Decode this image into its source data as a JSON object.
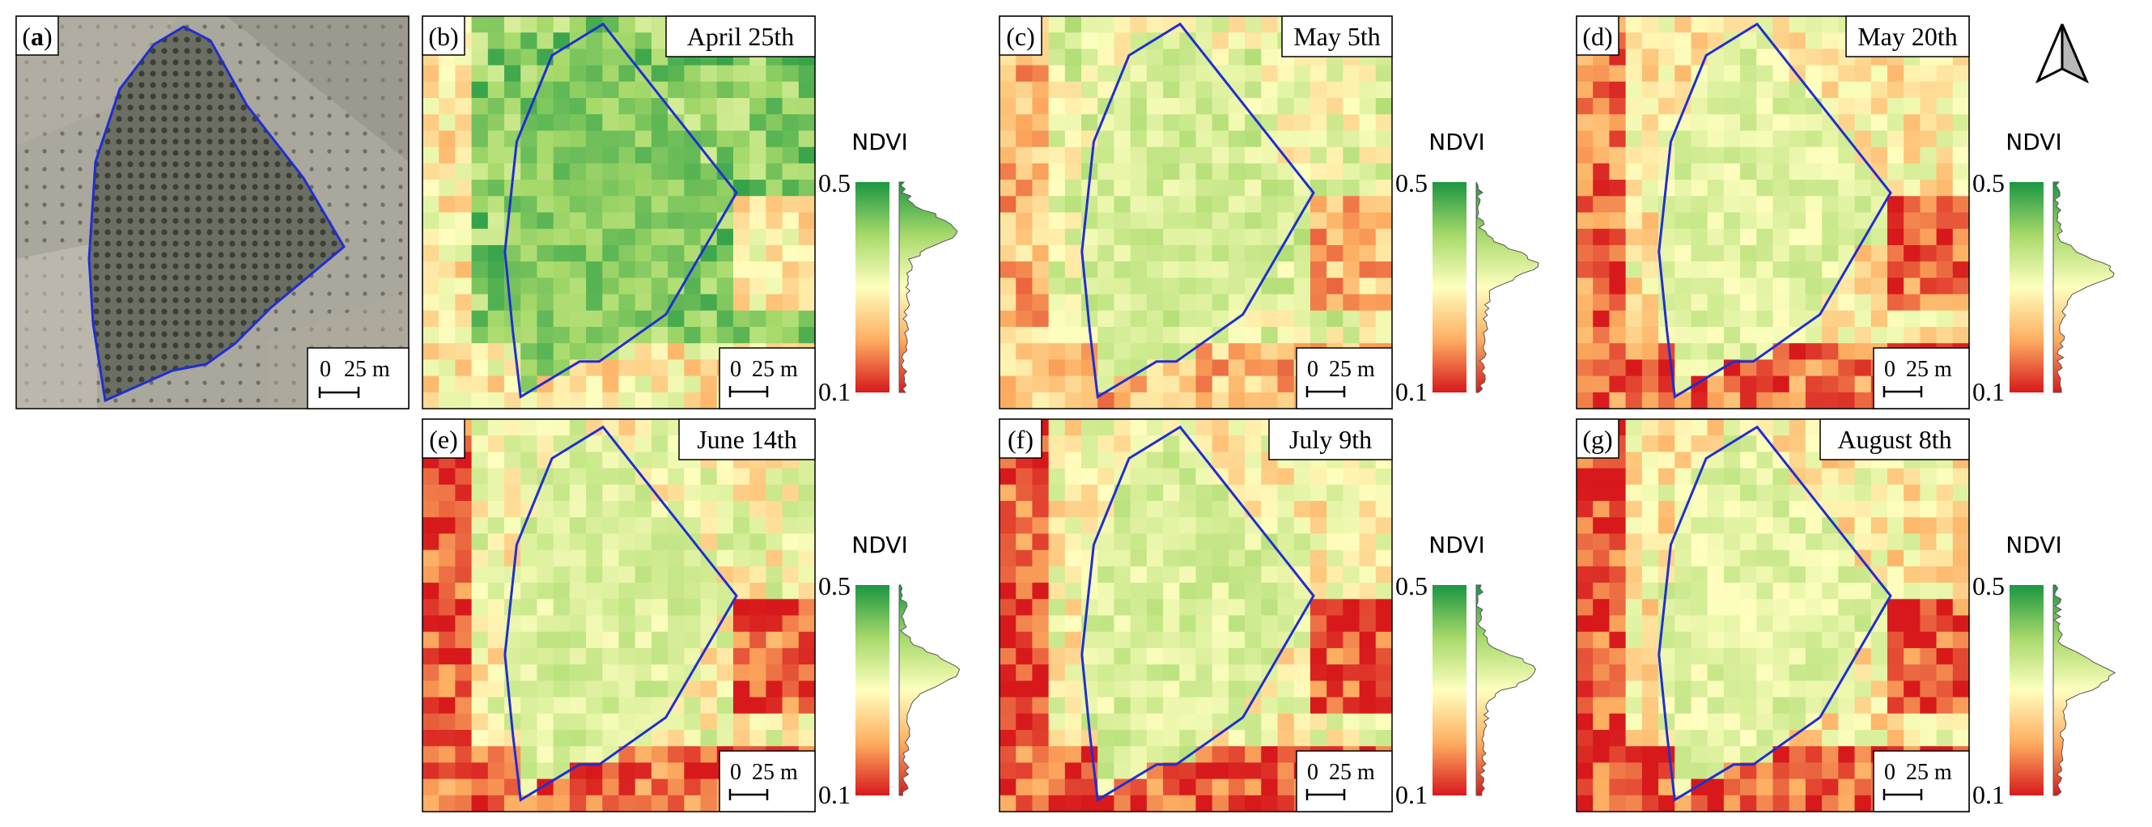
{
  "figure": {
    "panels": [
      {
        "id": "a",
        "label_letter": "a",
        "type": "aerial",
        "date": ""
      },
      {
        "id": "b",
        "label_letter": "b",
        "type": "ndvi",
        "date": "April 25th"
      },
      {
        "id": "c",
        "label_letter": "c",
        "type": "ndvi",
        "date": "May 5th"
      },
      {
        "id": "d",
        "label_letter": "d",
        "type": "ndvi",
        "date": "May 20th"
      },
      {
        "id": "e",
        "label_letter": "e",
        "type": "ndvi",
        "date": "June 14th"
      },
      {
        "id": "f",
        "label_letter": "f",
        "type": "ndvi",
        "date": "July 9th"
      },
      {
        "id": "g",
        "label_letter": "g",
        "type": "ndvi",
        "date": "August 8th"
      }
    ],
    "legend": {
      "title": "NDVI",
      "max_label": "0.5",
      "min_label": "0.1",
      "range": [
        0.1,
        0.5
      ]
    },
    "scalebar": {
      "zero": "0",
      "distance": "25 m"
    },
    "north_arrow_icon": "north-arrow-icon",
    "colors": {
      "outline": "#1f2fd0",
      "ndvi_high": "#1a9641",
      "ndvi_mid": "#ffffbf",
      "ndvi_low": "#d7191c",
      "histogram_fill": "#ffffbf"
    }
  }
}
